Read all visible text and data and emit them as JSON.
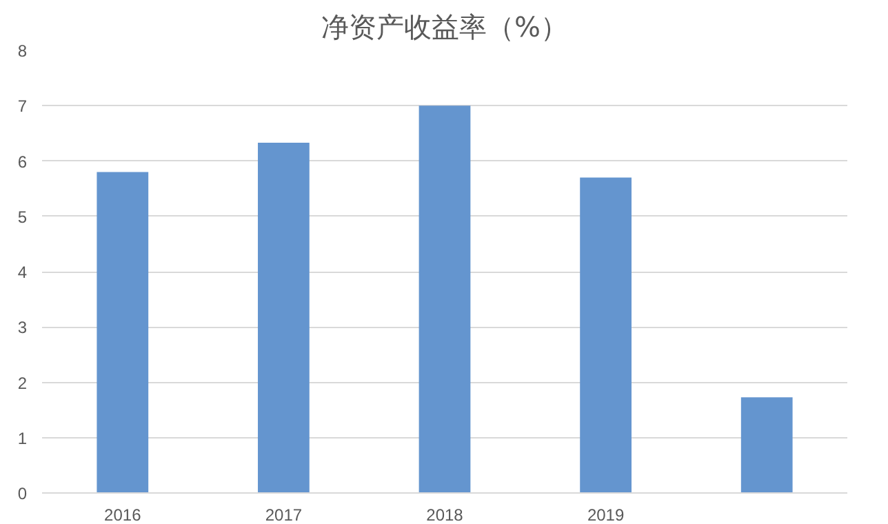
{
  "chart_data": {
    "type": "bar",
    "title": "净资产收益率（%）",
    "categories": [
      "2016",
      "2017",
      "2018",
      "2019",
      null
    ],
    "values": [
      5.8,
      6.33,
      7.0,
      5.7,
      1.73
    ],
    "color": "#6495cf",
    "ylim": [
      0,
      8
    ],
    "yticks": [
      0,
      1,
      2,
      3,
      4,
      5,
      6,
      7,
      8
    ],
    "grid": "y"
  }
}
